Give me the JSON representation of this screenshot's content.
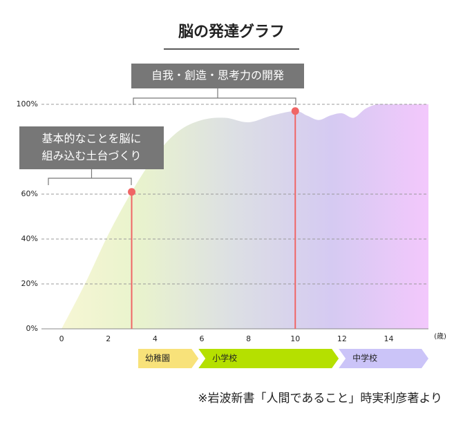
{
  "chart_data": {
    "type": "area",
    "title": "脳の発達グラフ",
    "source": "※岩波新書「人間であること」時実利彦著より",
    "x_unit": "(歳)",
    "x": [
      0,
      1,
      2,
      3,
      4,
      5,
      6,
      7,
      8,
      9,
      10,
      10.5,
      11,
      11.5,
      12,
      12.5,
      13,
      13.5,
      14,
      15,
      15.7
    ],
    "values": [
      0,
      20,
      42,
      61,
      77,
      88,
      93,
      94,
      92,
      95,
      97,
      95,
      93,
      95,
      96,
      94,
      98,
      100,
      100,
      100,
      100
    ],
    "gradient_colors": [
      "#faf7d6",
      "#e9f3cd",
      "#dcdfe4",
      "#d5caf2",
      "#f3c8fc"
    ],
    "xlim": [
      -0.86,
      15.7
    ],
    "xticks": [
      0,
      2,
      4,
      6,
      8,
      10,
      12,
      14
    ],
    "ylim": [
      0,
      100
    ],
    "yticks": [
      {
        "value": 0,
        "label": "0%"
      },
      {
        "value": 20,
        "label": "20%"
      },
      {
        "value": 40,
        "label": "40%"
      },
      {
        "value": 60,
        "label": "60%"
      },
      {
        "value": 100,
        "label": "100%"
      }
    ],
    "grid": true,
    "points": {
      "x": [
        3,
        10
      ],
      "values": [
        61,
        97
      ],
      "color": "#f06565"
    },
    "annotations": [
      {
        "lines": [
          "基本的なことを脳に",
          "組み込む土台づくり"
        ]
      },
      {
        "lines": [
          "自我・創造・思考力の開発"
        ]
      }
    ],
    "stages": [
      {
        "label": "幼稚園",
        "start": 3.28,
        "end": 5.86,
        "color": "#f8e27a"
      },
      {
        "label": "小学校",
        "start": 5.86,
        "end": 11.86,
        "color": "#b5e000"
      },
      {
        "label": "中学校",
        "start": 11.86,
        "end": 15.7,
        "color": "#cbc4f8"
      }
    ]
  }
}
